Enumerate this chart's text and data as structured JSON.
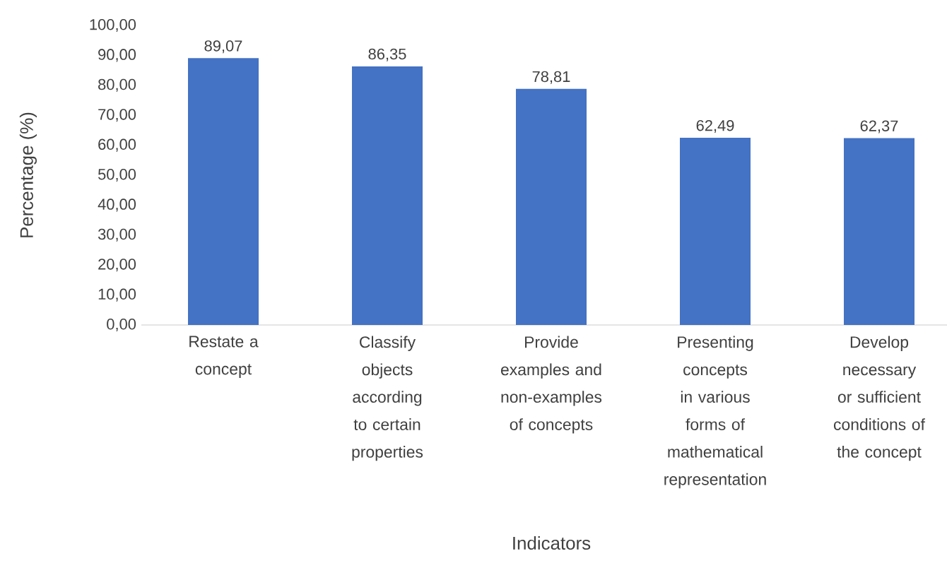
{
  "chart_data": {
    "type": "bar",
    "xlabel": "Indicators",
    "ylabel": "Percentage (%)",
    "categories": [
      "Restate a concept",
      "Classify objects according to certain properties",
      "Provide examples and non-examples of concepts",
      "Presenting concepts in various forms of mathematical representation",
      "Develop necessary or sufficient conditions of the concept"
    ],
    "values": [
      89.07,
      86.35,
      78.81,
      62.49,
      62.37
    ],
    "value_labels": [
      "89,07",
      "86,35",
      "78,81",
      "62,49",
      "62,37"
    ],
    "color": "#4472c4",
    "ylim": [
      0,
      100
    ],
    "yticks": [
      {
        "value": 0,
        "label": "0,00"
      },
      {
        "value": 10,
        "label": "10,00"
      },
      {
        "value": 20,
        "label": "20,00"
      },
      {
        "value": 30,
        "label": "30,00"
      },
      {
        "value": 40,
        "label": "40,00"
      },
      {
        "value": 50,
        "label": "50,00"
      },
      {
        "value": 60,
        "label": "60,00"
      },
      {
        "value": 70,
        "label": "70,00"
      },
      {
        "value": 80,
        "label": "80,00"
      },
      {
        "value": 90,
        "label": "90,00"
      },
      {
        "value": 100,
        "label": "100,00"
      }
    ]
  }
}
